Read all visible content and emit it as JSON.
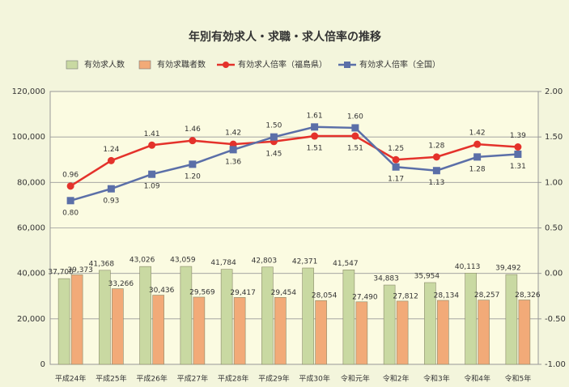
{
  "chart_data": {
    "type": "bar_line",
    "title": "年別有効求人・求職・求人倍率の推移",
    "categories": [
      "平成24年",
      "平成25年",
      "平成26年",
      "平成27年",
      "平成28年",
      "平成29年",
      "平成30年",
      "令和元年",
      "令和2年",
      "令和3年",
      "令和4年",
      "令和5年"
    ],
    "series": [
      {
        "name": "有効求人数",
        "color": "#c9d9a2",
        "type": "bar",
        "values": [
          37700,
          41368,
          43026,
          43059,
          41784,
          42803,
          42371,
          41547,
          34883,
          35954,
          40113,
          39492
        ],
        "value_labels": [
          "37,700",
          "41,368",
          "43,026",
          "43,059",
          "41,784",
          "42,803",
          "42,371",
          "41,547",
          "34,883",
          "35,954",
          "40,113",
          "39,492"
        ]
      },
      {
        "name": "有効求職者数",
        "color": "#f2aa78",
        "type": "bar",
        "values": [
          39373,
          33266,
          30436,
          29569,
          29417,
          29454,
          28054,
          27490,
          27812,
          28134,
          28257,
          28326
        ],
        "value_labels": [
          "39,373",
          "33,266",
          "30,436",
          "29,569",
          "29,417",
          "29,454",
          "28,054",
          "27,490",
          "27,812",
          "28,134",
          "28,257",
          "28,326"
        ]
      },
      {
        "name": "有効求人倍率（福島県）",
        "color": "#e4322b",
        "type": "line",
        "axis": "y2",
        "values": [
          0.96,
          1.24,
          1.41,
          1.46,
          1.42,
          1.45,
          1.51,
          1.51,
          1.25,
          1.28,
          1.42,
          1.39
        ],
        "value_labels": [
          "0.96",
          "1.24",
          "1.41",
          "1.46",
          "1.42",
          "1.45",
          "1.51",
          "1.51",
          "1.25",
          "1.28",
          "1.42",
          "1.39"
        ]
      },
      {
        "name": "有効求人倍率（全国）",
        "color": "#5b6fa8",
        "type": "line",
        "axis": "y2",
        "values": [
          0.8,
          0.93,
          1.09,
          1.2,
          1.36,
          1.5,
          1.61,
          1.6,
          1.17,
          1.13,
          1.28,
          1.31
        ],
        "value_labels": [
          "0.80",
          "0.93",
          "1.09",
          "1.20",
          "1.36",
          "1.50",
          "1.61",
          "1.60",
          "1.17",
          "1.13",
          "1.28",
          "1.31"
        ]
      }
    ],
    "ylim": [
      0,
      120000
    ],
    "yticks": [
      {
        "value": 0,
        "label": "0"
      },
      {
        "value": 20000,
        "label": "20,000"
      },
      {
        "value": 40000,
        "label": "40,000"
      },
      {
        "value": 60000,
        "label": "60,000"
      },
      {
        "value": 80000,
        "label": "80,000"
      },
      {
        "value": 100000,
        "label": "100,000"
      },
      {
        "value": 120000,
        "label": "120,000"
      }
    ],
    "y2lim": [
      -1,
      2
    ],
    "y2ticks": [
      {
        "value": -1,
        "label": "-1.00"
      },
      {
        "value": -0.5,
        "label": "-0.50"
      },
      {
        "value": 0,
        "label": "0.00"
      },
      {
        "value": 0.5,
        "label": "0.50"
      },
      {
        "value": 1,
        "label": "1.00"
      },
      {
        "value": 1.5,
        "label": "1.50"
      },
      {
        "value": 2,
        "label": "2.00"
      }
    ],
    "grid": true
  }
}
